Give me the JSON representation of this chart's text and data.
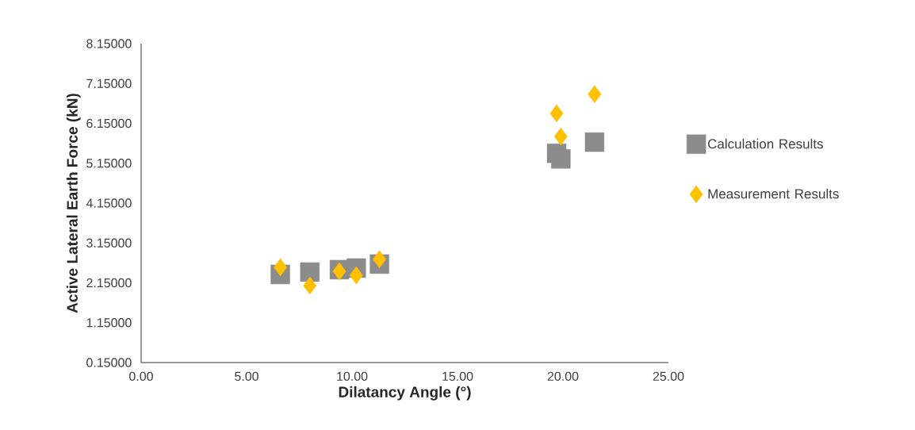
{
  "chart_data": {
    "type": "scatter",
    "xlabel": "Dilatancy Angle (°)",
    "ylabel": "Active Lateral Earth Force (kN)",
    "xlim": [
      0,
      25
    ],
    "ylim": [
      0.15,
      8.15
    ],
    "xticks": [
      {
        "value": 0,
        "label": "0.00"
      },
      {
        "value": 5,
        "label": "5.00"
      },
      {
        "value": 10,
        "label": "10.00"
      },
      {
        "value": 15,
        "label": "15.00"
      },
      {
        "value": 20,
        "label": "20.00"
      },
      {
        "value": 25,
        "label": "25.00"
      }
    ],
    "yticks": [
      {
        "value": 0.15,
        "label": "0.15000"
      },
      {
        "value": 1.15,
        "label": "1.15000"
      },
      {
        "value": 2.15,
        "label": "2.15000"
      },
      {
        "value": 3.15,
        "label": "3.15000"
      },
      {
        "value": 4.15,
        "label": "4.15000"
      },
      {
        "value": 5.15,
        "label": "5.15000"
      },
      {
        "value": 6.15,
        "label": "6.15000"
      },
      {
        "value": 7.15,
        "label": "7.15000"
      },
      {
        "value": 8.15,
        "label": "8.15000"
      }
    ],
    "grid": false,
    "legend": "right",
    "series": [
      {
        "name": "Calculation Results",
        "color": "#8c8c8c",
        "marker": "square",
        "x": [
          6.6,
          8.0,
          9.4,
          10.2,
          11.3,
          19.7,
          19.9,
          21.5
        ],
        "values": [
          2.36,
          2.42,
          2.48,
          2.52,
          2.62,
          5.4,
          5.26,
          5.68
        ]
      },
      {
        "name": "Measurement Results",
        "color": "#ffc000",
        "marker": "diamond",
        "x": [
          6.6,
          8.0,
          9.4,
          10.2,
          11.3,
          19.7,
          19.9,
          21.5
        ],
        "values": [
          2.54,
          2.08,
          2.44,
          2.34,
          2.74,
          6.4,
          5.82,
          6.88
        ]
      }
    ]
  }
}
